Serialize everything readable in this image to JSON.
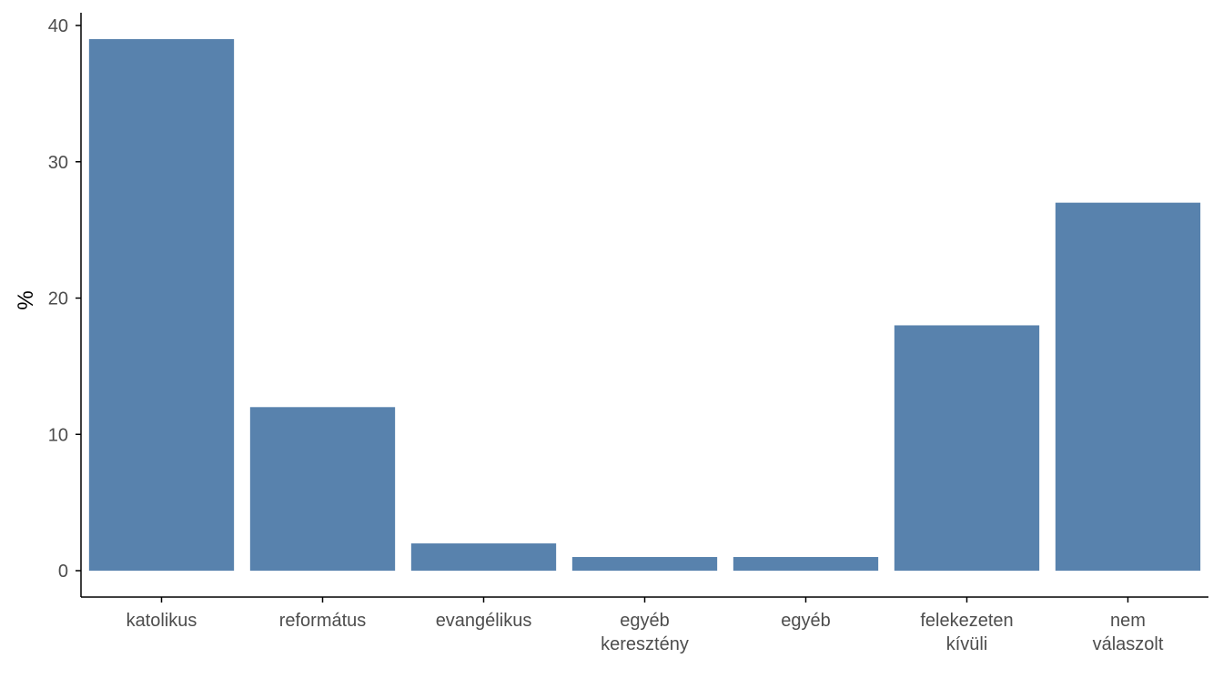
{
  "chart_data": {
    "type": "bar",
    "title": "",
    "xlabel": "",
    "ylabel": "%",
    "categories": [
      [
        "katolikus"
      ],
      [
        "református"
      ],
      [
        "evangélikus"
      ],
      [
        "egyéb",
        "keresztény"
      ],
      [
        "egyéb"
      ],
      [
        "felekezeten",
        "kívüli"
      ],
      [
        "nem",
        "válaszolt"
      ]
    ],
    "values": [
      39,
      12,
      2,
      1,
      1,
      18,
      27
    ],
    "ylim": [
      -2,
      41
    ],
    "yticks": [
      0,
      10,
      20,
      30,
      40
    ],
    "grid": false,
    "bar_color": "#5882ad",
    "axis_color": "#000000",
    "tick_label_color": "#4d4d4d"
  }
}
